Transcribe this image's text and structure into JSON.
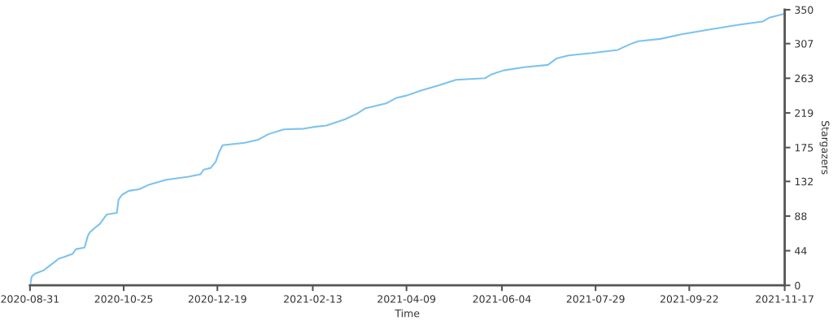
{
  "chart_data": {
    "type": "line",
    "xlabel": "Time",
    "ylabel": "Stargazers",
    "x": [
      "2020-08-31",
      "2020-09-01",
      "2020-09-03",
      "2020-09-08",
      "2020-09-11",
      "2020-09-14",
      "2020-09-17",
      "2020-09-20",
      "2020-09-25",
      "2020-09-27",
      "2020-10-02",
      "2020-10-04",
      "2020-10-05",
      "2020-10-08",
      "2020-10-11",
      "2020-10-13",
      "2020-10-15",
      "2020-10-21",
      "2020-10-22",
      "2020-10-24",
      "2020-10-28",
      "2020-11-03",
      "2020-11-09",
      "2020-11-19",
      "2020-12-02",
      "2020-12-09",
      "2020-12-11",
      "2020-12-15",
      "2020-12-18",
      "2020-12-20",
      "2020-12-22",
      "2021-01-04",
      "2021-01-12",
      "2021-01-18",
      "2021-01-27",
      "2021-02-08",
      "2021-02-13",
      "2021-02-21",
      "2021-03-04",
      "2021-03-11",
      "2021-03-16",
      "2021-03-28",
      "2021-04-03",
      "2021-04-09",
      "2021-04-17",
      "2021-04-28",
      "2021-05-08",
      "2021-05-25",
      "2021-05-29",
      "2021-06-05",
      "2021-06-17",
      "2021-07-01",
      "2021-07-06",
      "2021-07-13",
      "2021-07-27",
      "2021-08-11",
      "2021-08-18",
      "2021-08-23",
      "2021-09-05",
      "2021-09-18",
      "2021-10-07",
      "2021-10-21",
      "2021-11-04",
      "2021-11-08",
      "2021-11-17"
    ],
    "series": [
      {
        "color": "#7cc3ee",
        "values": [
          0,
          11,
          15,
          19,
          24,
          29,
          34,
          36,
          40,
          46,
          48,
          63,
          67,
          73,
          78,
          84,
          90,
          92,
          109,
          115,
          120,
          122,
          128,
          134,
          138,
          141,
          147,
          149,
          157,
          169,
          178,
          181,
          185,
          192,
          198,
          199,
          201,
          203,
          211,
          218,
          225,
          231,
          238,
          241,
          247,
          254,
          261,
          263,
          268,
          273,
          277,
          280,
          288,
          292,
          295,
          299,
          306,
          310,
          313,
          319,
          326,
          331,
          335,
          340,
          345
        ]
      }
    ],
    "xlim": [
      "2020-08-31",
      "2021-11-17"
    ],
    "xticks": [
      "2020-08-31",
      "2020-10-25",
      "2020-12-19",
      "2021-02-13",
      "2021-04-09",
      "2021-06-04",
      "2021-07-29",
      "2021-09-22",
      "2021-11-17"
    ],
    "ylim": [
      0,
      350
    ],
    "yticks": [
      0,
      44,
      88,
      132,
      175,
      219,
      263,
      307,
      350
    ],
    "grid": false,
    "marker": "none",
    "line_style": "solid"
  }
}
